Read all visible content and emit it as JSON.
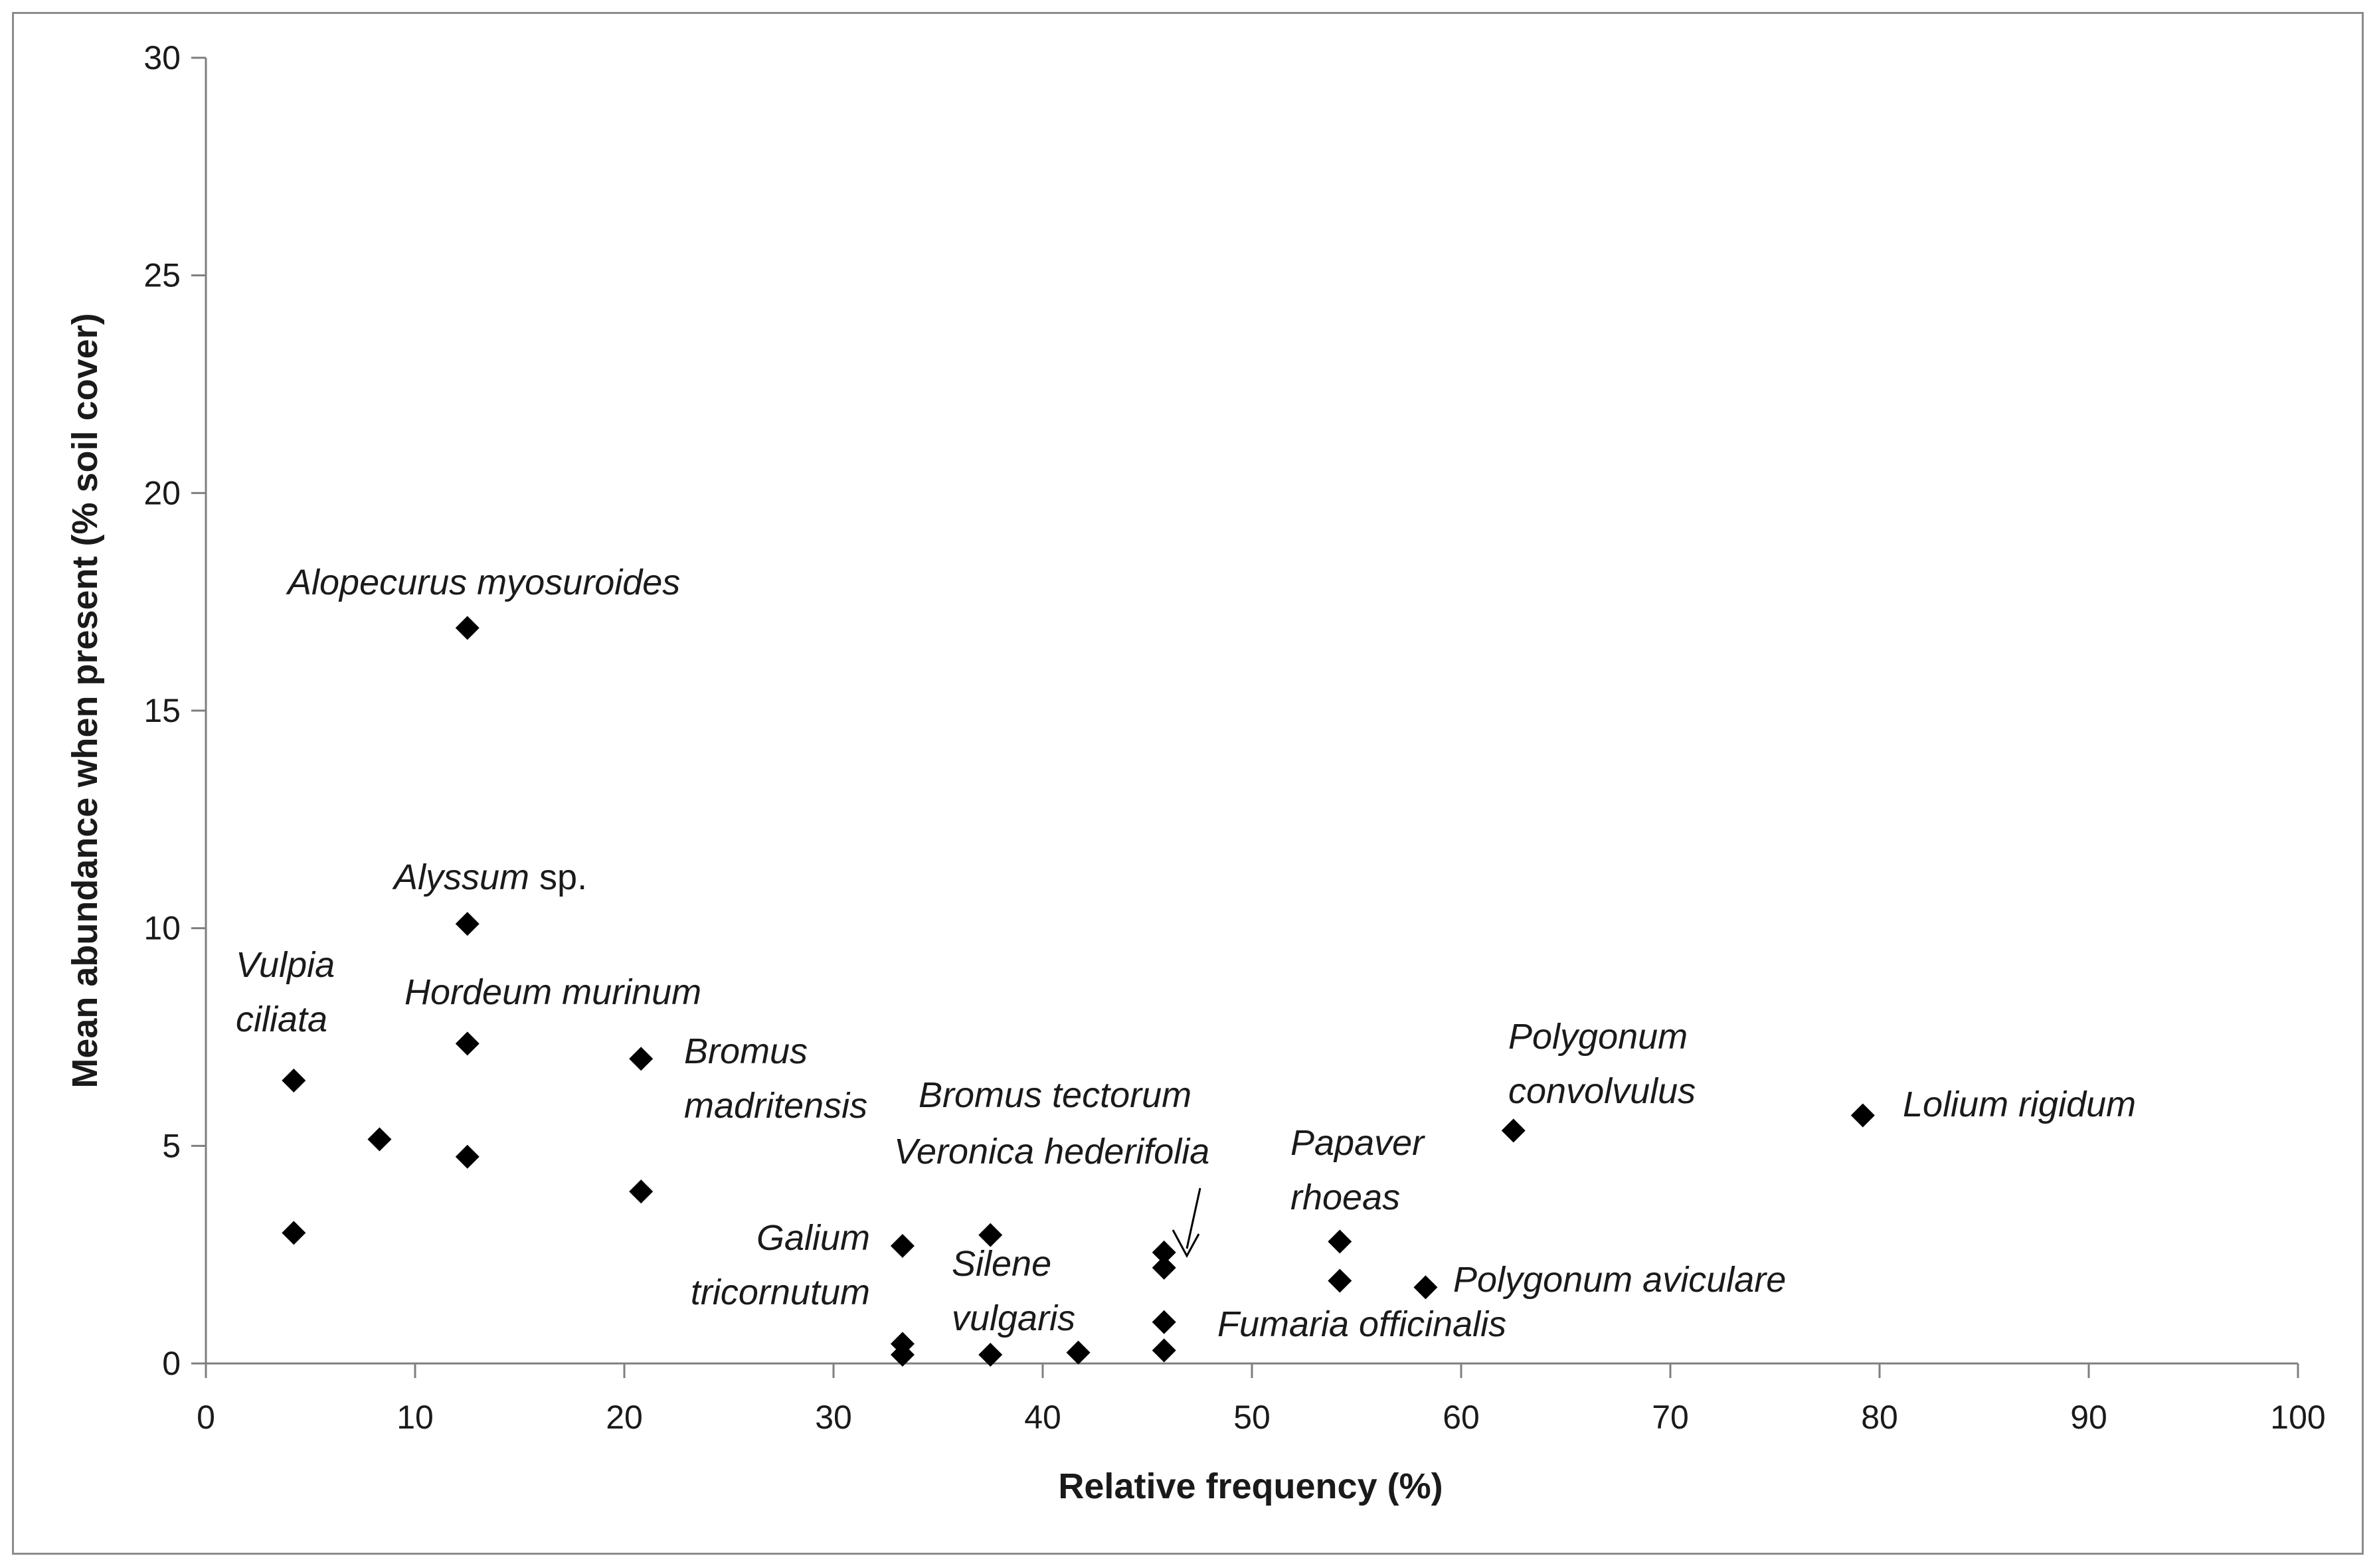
{
  "chart_data": {
    "type": "scatter",
    "title": "",
    "xlabel": "Relative frequency (%)",
    "ylabel": "Mean abundance when present (% soil cover)",
    "xlim": [
      0,
      100
    ],
    "ylim": [
      0,
      30
    ],
    "xticks": [
      0,
      10,
      20,
      30,
      40,
      50,
      60,
      70,
      80,
      90,
      100
    ],
    "yticks": [
      0,
      5,
      10,
      15,
      20,
      25,
      30
    ],
    "grid": false,
    "marker": "diamond",
    "marker_color": "#000000",
    "points": [
      {
        "x": 4.2,
        "y": 6.5
      },
      {
        "x": 4.2,
        "y": 3.0
      },
      {
        "x": 8.3,
        "y": 5.15
      },
      {
        "x": 12.5,
        "y": 16.9
      },
      {
        "x": 12.5,
        "y": 10.1
      },
      {
        "x": 12.5,
        "y": 7.35
      },
      {
        "x": 12.5,
        "y": 4.75
      },
      {
        "x": 20.8,
        "y": 7.0
      },
      {
        "x": 20.8,
        "y": 3.95
      },
      {
        "x": 33.3,
        "y": 2.7
      },
      {
        "x": 33.3,
        "y": 0.45
      },
      {
        "x": 33.3,
        "y": 0.2
      },
      {
        "x": 37.5,
        "y": 2.95
      },
      {
        "x": 37.5,
        "y": 0.2
      },
      {
        "x": 41.7,
        "y": 0.25
      },
      {
        "x": 45.8,
        "y": 2.55
      },
      {
        "x": 45.8,
        "y": 2.2
      },
      {
        "x": 45.8,
        "y": 0.95
      },
      {
        "x": 45.8,
        "y": 0.3
      },
      {
        "x": 54.2,
        "y": 2.8
      },
      {
        "x": 54.2,
        "y": 1.9
      },
      {
        "x": 58.3,
        "y": 1.75
      },
      {
        "x": 62.5,
        "y": 5.35
      },
      {
        "x": 79.2,
        "y": 5.7
      }
    ],
    "annotations": [
      {
        "lines": [
          [
            "Alopecurus myosuroides"
          ]
        ]
      },
      {
        "lines": [
          [
            "Alyssum",
            " sp."
          ]
        ]
      },
      {
        "lines": [
          [
            "Vulpia"
          ],
          [
            "ciliata"
          ]
        ]
      },
      {
        "lines": [
          [
            "Hordeum murinum"
          ]
        ]
      },
      {
        "lines": [
          [
            "Bromus"
          ],
          [
            "madritensis"
          ]
        ]
      },
      {
        "lines": [
          [
            "Bromus tectorum"
          ]
        ]
      },
      {
        "lines": [
          [
            "Veronica hederifolia"
          ]
        ]
      },
      {
        "lines": [
          [
            "Galium"
          ],
          [
            "tricornutum"
          ]
        ]
      },
      {
        "lines": [
          [
            "Silene"
          ],
          [
            "vulgaris"
          ]
        ]
      },
      {
        "lines": [
          [
            "Fumaria officinalis"
          ]
        ]
      },
      {
        "lines": [
          [
            "Papaver"
          ],
          [
            "rhoeas"
          ]
        ]
      },
      {
        "lines": [
          [
            "Polygonum aviculare"
          ]
        ]
      },
      {
        "lines": [
          [
            "Polygonum"
          ],
          [
            "convolvulus"
          ]
        ]
      },
      {
        "lines": [
          [
            "Lolium rigidum"
          ]
        ]
      }
    ]
  }
}
